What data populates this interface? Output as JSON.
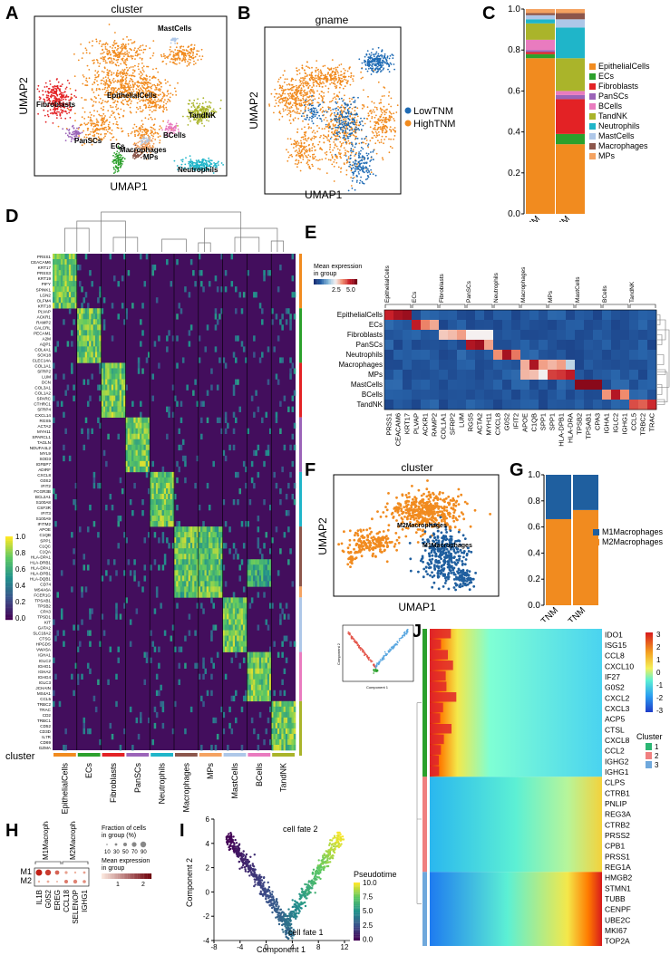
{
  "panel_letters": {
    "A": "A",
    "B": "B",
    "C": "C",
    "D": "D",
    "E": "E",
    "F": "F",
    "G": "G",
    "H": "H",
    "I": "I",
    "J": "J"
  },
  "colors": {
    "EpithelialCells": "#f18b1f",
    "ECs": "#2ca02c",
    "Fibroblasts": "#e32225",
    "PanSCs": "#9b64b8",
    "BCells": "#e97bbf",
    "TandNK": "#aab42a",
    "Neutrophils": "#1fb5c9",
    "MastCells": "#aec7e8",
    "Macrophages": "#8c564b",
    "MPs": "#f4a261",
    "LowTNM": "#1f6bb4",
    "HighTNM": "#f18b1f",
    "M1": "#1f5f9f",
    "M2": "#f18b1f"
  },
  "panelA": {
    "title": "cluster",
    "xlabel": "UMAP1",
    "ylabel": "UMAP2",
    "labels": [
      "MastCells",
      "EpithelialCells",
      "Fibroblasts",
      "PanSCs",
      "TandNK",
      "BCells",
      "MPs",
      "ECs",
      "Macrophages",
      "Neutrophils"
    ]
  },
  "panelB": {
    "title": "gname",
    "xlabel": "UMAP1",
    "ylabel": "UMAP2",
    "legend": [
      "LowTNM",
      "HighTNM"
    ]
  },
  "chart_data": [
    {
      "type": "bar",
      "panel": "C",
      "stacked": true,
      "categories": [
        "LowTNM",
        "HighTNM"
      ],
      "ylim": [
        0,
        1
      ],
      "yticks": [
        "0.0",
        "0.2",
        "0.4",
        "0.6",
        "0.8",
        "1.0"
      ],
      "series": [
        {
          "name": "EpithelialCells",
          "values": [
            0.76,
            0.34
          ]
        },
        {
          "name": "ECs",
          "values": [
            0.02,
            0.05
          ]
        },
        {
          "name": "Fibroblasts",
          "values": [
            0.01,
            0.17
          ]
        },
        {
          "name": "PanSCs",
          "values": [
            0.01,
            0.02
          ]
        },
        {
          "name": "BCells",
          "values": [
            0.05,
            0.02
          ]
        },
        {
          "name": "TandNK",
          "values": [
            0.08,
            0.16
          ]
        },
        {
          "name": "Neutrophils",
          "values": [
            0.02,
            0.15
          ]
        },
        {
          "name": "MastCells",
          "values": [
            0.02,
            0.04
          ]
        },
        {
          "name": "Macrophages",
          "values": [
            0.01,
            0.03
          ]
        },
        {
          "name": "MPs",
          "values": [
            0.02,
            0.02
          ]
        }
      ],
      "legend": [
        "EpithelialCells",
        "ECs",
        "Fibroblasts",
        "PanSCs",
        "BCells",
        "TandNK",
        "Neutrophils",
        "MastCells",
        "Macrophages",
        "MPs"
      ]
    },
    {
      "type": "bar",
      "panel": "G",
      "stacked": true,
      "categories": [
        "LowTNM",
        "HighTNM"
      ],
      "ylim": [
        0,
        1
      ],
      "yticks": [
        "0.0",
        "0.2",
        "0.4",
        "0.6",
        "0.8",
        "1.0"
      ],
      "series": [
        {
          "name": "M2Macrophages",
          "values": [
            0.66,
            0.73
          ]
        },
        {
          "name": "M1Macrophages",
          "values": [
            0.34,
            0.27
          ]
        }
      ],
      "legend": [
        "M1Macrophages",
        "M2Macrophages"
      ]
    }
  ],
  "panelD": {
    "genes": [
      "PRSS1",
      "CEACAM6",
      "KRT17",
      "PRSS3",
      "KRT19",
      "PIFY",
      "SPINK1",
      "LGN2",
      "OLFM4",
      "KRT18",
      "PLVAP",
      "ACKR1",
      "RAMP2",
      "CALCRL",
      "PECAM1",
      "A2M",
      "AQP1",
      "COL4A1",
      "SOX18",
      "CLEC14A",
      "COL1A1",
      "SFRP2",
      "LUM",
      "DCN",
      "COL3A1",
      "COL1A2",
      "SPARC",
      "CTHRC1",
      "SFRP4",
      "CXCL14",
      "RGS5",
      "ACTA2",
      "MYH11",
      "SPARCL1",
      "TAGLN",
      "NDUFA4L2",
      "MYL9",
      "SOD3",
      "IGFBP7",
      "ADIRF",
      "CXCL8",
      "G0S2",
      "IFIT2",
      "FCGR3B",
      "BCL2A1",
      "S100A8",
      "CSF3R",
      "IFIT3",
      "S100A9",
      "IFITM2",
      "APOE",
      "C1QB",
      "SPP1",
      "C1QC",
      "C1QA",
      "HLA-DPA1",
      "HLA-DRB1",
      "HLA-DPA1",
      "HLA-DPB1",
      "HLA-DQB1",
      "CD74",
      "MS4A6A",
      "FCER1G",
      "TPSAB1",
      "TPSB2",
      "CPA3",
      "TPSD1",
      "KIT",
      "GATA2",
      "SLC18A2",
      "CTSG",
      "HPGDS",
      "VWA5A",
      "IGHA1",
      "IGLC2",
      "IGHG1",
      "IGHA2",
      "IGHG4",
      "IGLC3",
      "JCHAIN",
      "MS4A1",
      "CCL5",
      "TRBC2",
      "TRAC",
      "CD2",
      "TRBC1",
      "CD52",
      "CD3D",
      "IL7R",
      "CD69",
      "GZMA"
    ],
    "clusters": [
      "EpithelialCells",
      "ECs",
      "Fibroblasts",
      "PanSCs",
      "Neutrophils",
      "Macrophages",
      "MPs",
      "MastCells",
      "BCells",
      "TandNK"
    ],
    "cluster_label": "cluster",
    "colorbar_ticks": [
      "1.0",
      "0.8",
      "0.6",
      "0.4",
      "0.2",
      "0.0"
    ]
  },
  "panelE": {
    "legend_title": "Mean expression\nin group",
    "legend_ticks": [
      "2.5",
      "5.0"
    ],
    "rows": [
      "EpithelialCells",
      "ECs",
      "Fibroblasts",
      "PanSCs",
      "Neutrophils",
      "Macrophages",
      "MPs",
      "MastCells",
      "BCells",
      "TandNK"
    ],
    "groups": [
      "EpithelialCells",
      "ECs",
      "Fibroblasts",
      "PanSCs",
      "Neutrophils",
      "Macrophages",
      "MPs",
      "MastCells",
      "BCells",
      "TandNK"
    ],
    "genes": [
      "PRSS1",
      "CEACAM6",
      "KRT17",
      "PLVAP",
      "ACKR1",
      "RAMP2",
      "COL1A1",
      "SFRP2",
      "LUM",
      "RGS5",
      "ACTA2",
      "MYH11",
      "CXCL8",
      "G0S2",
      "IFIT2",
      "APOE",
      "C1QB",
      "SPP1",
      "SPP1",
      "HLA-DPB1",
      "HLA-DRA",
      "TPSB2",
      "TPSAB1",
      "CPA3",
      "IGHA1",
      "IGLC2",
      "IGHG1",
      "CCL5",
      "TRBC2",
      "TRAC"
    ]
  },
  "panelF": {
    "title": "cluster",
    "xlabel": "UMAP1",
    "ylabel": "UMAP2",
    "labels": [
      "M2Macrophages",
      "M1Macrophages"
    ]
  },
  "panelH": {
    "group_labels": [
      "M1Macrophages",
      "M2Macrophages"
    ],
    "rows": [
      "M1",
      "M2"
    ],
    "genes": [
      "IL1B",
      "G0S2",
      "EREG",
      "CCL18",
      "SELENOP",
      "IGHG1"
    ],
    "fraction_title": "Fraction of cells\nin group (%)",
    "fraction_ticks": [
      "10",
      "30",
      "50",
      "70",
      "90"
    ],
    "mean_title": "Mean expression\nin group",
    "mean_ticks": [
      "1",
      "2"
    ]
  },
  "panelI": {
    "xlabel": "Component 1",
    "ylabel": "Component 2",
    "xticks": [
      "-8",
      "-4",
      "0",
      "4",
      "8",
      "12"
    ],
    "yticks": [
      "-4",
      "-2",
      "0",
      "2",
      "4",
      "6"
    ],
    "annotations": [
      "cell fate 2",
      "cell fate 1"
    ],
    "legend_title": "Pseudotime",
    "legend_ticks": [
      "10.0",
      "7.5",
      "5.0",
      "2.5",
      "0.0"
    ],
    "inset_xlabel": "Component 1",
    "inset_ylabel": "Component 2"
  },
  "panelJ": {
    "genes": [
      "IDO1",
      "ISG15",
      "CCL8",
      "CXCL10",
      "IF27",
      "G0S2",
      "CXCL2",
      "CXCL3",
      "ACP5",
      "CTSL",
      "CXCL8",
      "CCL2",
      "IGHG2",
      "IGHG1",
      "CLPS",
      "CTRB1",
      "PNLIP",
      "REG3A",
      "CTRB2",
      "PRSS2",
      "CPB1",
      "PRSS1",
      "REG1A",
      "HMGB2",
      "STMN1",
      "TUBB",
      "CENPF",
      "UBE2C",
      "MKI67",
      "TOP2A"
    ],
    "colorbar_ticks": [
      "3",
      "2",
      "1",
      "0",
      "-1",
      "-2",
      "-3"
    ],
    "legend_title": "Cluster",
    "legend": [
      "1",
      "2",
      "3"
    ]
  }
}
